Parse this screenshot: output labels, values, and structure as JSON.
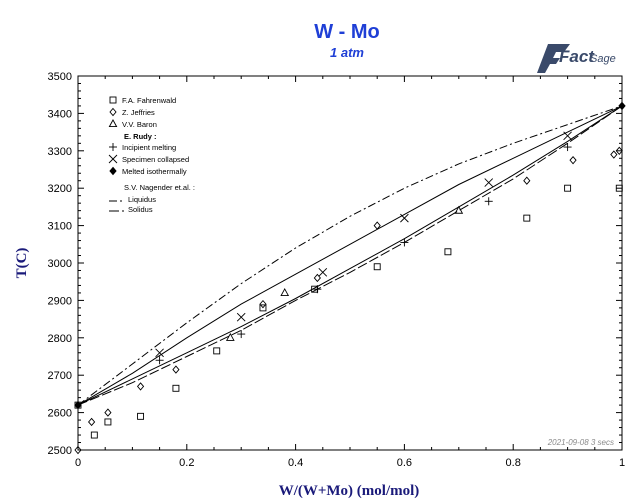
{
  "header": {
    "title": "W - Mo",
    "subtitle": "1 atm",
    "logo_main": "Fact",
    "logo_sub": "Sage",
    "stamp": "2021-09-08  3 secs"
  },
  "chart_data": {
    "type": "scatter",
    "title": "W - Mo",
    "subtitle": "1 atm",
    "xlabel": "W/(W+Mo) (mol/mol)",
    "ylabel": "T(C)",
    "xlim": [
      0,
      1
    ],
    "ylim": [
      2500,
      3500
    ],
    "x_ticks": [
      0,
      0.2,
      0.4,
      0.6,
      0.8,
      1
    ],
    "x_tick_labels": [
      "0",
      "0.2",
      "0.4",
      "0.6",
      "0.8",
      "1"
    ],
    "y_ticks": [
      2500,
      2600,
      2700,
      2800,
      2900,
      3000,
      3100,
      3200,
      3300,
      3400,
      3500
    ],
    "y_tick_labels": [
      "2500",
      "2600",
      "2700",
      "2800",
      "2900",
      "3000",
      "3100",
      "3200",
      "3300",
      "3400",
      "3500"
    ],
    "legend_position": "top-left",
    "legend_header_rudy": "E. Rudy :",
    "legend_header_nagender": "S.V. Nagender et.al. :",
    "series": [
      {
        "name": "F.A. Fahrenwald",
        "marker": "square",
        "points": [
          [
            0.0,
            2620
          ],
          [
            0.03,
            2540
          ],
          [
            0.055,
            2575
          ],
          [
            0.115,
            2590
          ],
          [
            0.18,
            2665
          ],
          [
            0.255,
            2765
          ],
          [
            0.34,
            2880
          ],
          [
            0.435,
            2930
          ],
          [
            0.55,
            2990
          ],
          [
            0.68,
            3030
          ],
          [
            0.825,
            3120
          ],
          [
            0.9,
            3200
          ],
          [
            0.995,
            3200
          ]
        ]
      },
      {
        "name": "Z. Jeffries",
        "marker": "diamond",
        "points": [
          [
            0.0,
            2500
          ],
          [
            0.025,
            2575
          ],
          [
            0.055,
            2600
          ],
          [
            0.115,
            2670
          ],
          [
            0.18,
            2715
          ],
          [
            0.34,
            2890
          ],
          [
            0.44,
            2960
          ],
          [
            0.55,
            3100
          ],
          [
            0.825,
            3220
          ],
          [
            0.91,
            3275
          ],
          [
            0.985,
            3290
          ],
          [
            0.995,
            3300
          ]
        ]
      },
      {
        "name": "V.V. Baron",
        "marker": "triangle",
        "points": [
          [
            0.28,
            2800
          ],
          [
            0.38,
            2920
          ],
          [
            0.7,
            3140
          ]
        ]
      },
      {
        "name": "Incipient melting",
        "marker": "plus",
        "points": [
          [
            0.15,
            2740
          ],
          [
            0.3,
            2810
          ],
          [
            0.44,
            2930
          ],
          [
            0.6,
            3055
          ],
          [
            0.755,
            3165
          ],
          [
            0.9,
            3310
          ]
        ]
      },
      {
        "name": "Specimen collapsed",
        "marker": "x",
        "points": [
          [
            0.15,
            2760
          ],
          [
            0.3,
            2855
          ],
          [
            0.45,
            2975
          ],
          [
            0.6,
            3120
          ],
          [
            0.755,
            3215
          ],
          [
            0.9,
            3340
          ]
        ]
      },
      {
        "name": "Melted isothermally",
        "marker": "filled-diamond",
        "points": [
          [
            0.0,
            2620
          ],
          [
            1.0,
            3420
          ]
        ]
      },
      {
        "name": "Liquidus",
        "style": "dash-dot",
        "points": [
          [
            0,
            2620
          ],
          [
            0.1,
            2730
          ],
          [
            0.2,
            2840
          ],
          [
            0.3,
            2945
          ],
          [
            0.4,
            3040
          ],
          [
            0.5,
            3125
          ],
          [
            0.6,
            3200
          ],
          [
            0.7,
            3265
          ],
          [
            0.8,
            3320
          ],
          [
            0.9,
            3370
          ],
          [
            1.0,
            3420
          ]
        ]
      },
      {
        "name": "Solidus",
        "style": "dashed",
        "points": [
          [
            0,
            2620
          ],
          [
            0.1,
            2680
          ],
          [
            0.2,
            2750
          ],
          [
            0.3,
            2820
          ],
          [
            0.4,
            2900
          ],
          [
            0.5,
            2975
          ],
          [
            0.6,
            3055
          ],
          [
            0.7,
            3140
          ],
          [
            0.8,
            3225
          ],
          [
            0.9,
            3320
          ],
          [
            1.0,
            3420
          ]
        ]
      },
      {
        "name": "",
        "style": "solid",
        "points": [
          [
            0,
            2620
          ],
          [
            0.1,
            2705
          ],
          [
            0.2,
            2800
          ],
          [
            0.3,
            2890
          ],
          [
            0.4,
            2970
          ],
          [
            0.5,
            3050
          ],
          [
            0.6,
            3130
          ],
          [
            0.7,
            3210
          ],
          [
            0.8,
            3280
          ],
          [
            0.9,
            3350
          ],
          [
            1.0,
            3420
          ]
        ]
      },
      {
        "name": "",
        "style": "solid",
        "points": [
          [
            0,
            2620
          ],
          [
            0.1,
            2690
          ],
          [
            0.2,
            2760
          ],
          [
            0.3,
            2830
          ],
          [
            0.4,
            2905
          ],
          [
            0.5,
            2985
          ],
          [
            0.6,
            3065
          ],
          [
            0.7,
            3150
          ],
          [
            0.8,
            3235
          ],
          [
            0.9,
            3325
          ],
          [
            1.0,
            3420
          ]
        ]
      }
    ]
  }
}
